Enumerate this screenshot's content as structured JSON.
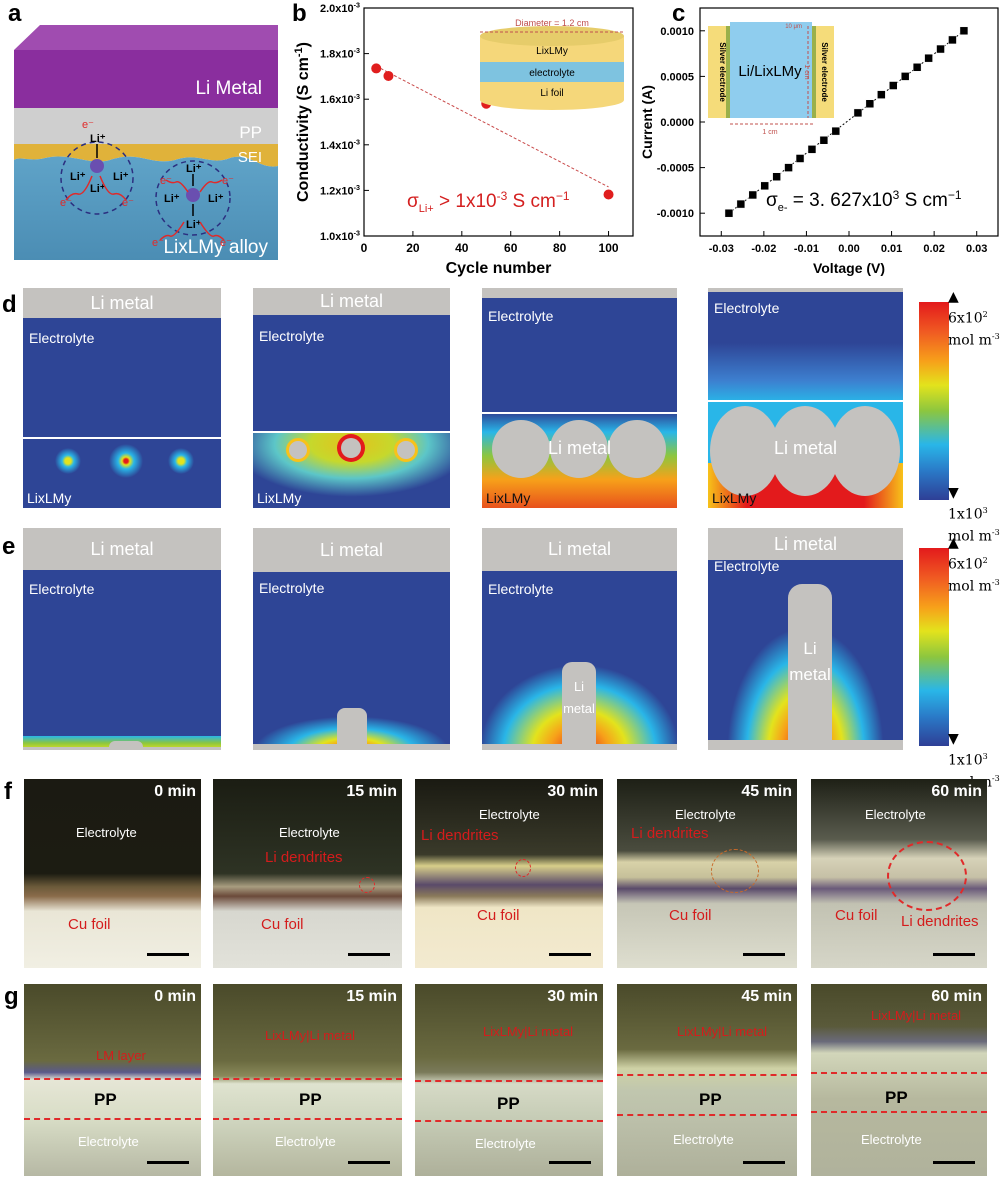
{
  "panel_labels": {
    "a": "a",
    "b": "b",
    "c": "c",
    "d": "d",
    "e": "e",
    "f": "f",
    "g": "g"
  },
  "panel_a": {
    "layers": [
      "Li Metal",
      "PP",
      "SEI",
      "LixLMy alloy"
    ],
    "ions": {
      "li": "Li",
      "li_sup": "+",
      "e": "e",
      "e_sup": "-"
    },
    "colors": {
      "li_metal": "#8a2e9e",
      "pp": "#c9c9c9",
      "sei": "#e0b23a",
      "alloy": "#5a9bc0"
    }
  },
  "chart_data": [
    {
      "type": "scatter",
      "panel": "b",
      "xlabel": "Cycle number",
      "ylabel": "Conductivity (S cm",
      "ylabel_sup": "-1",
      "ylabel_close": ")",
      "xlim": [
        0,
        110
      ],
      "ylim": [
        0.001,
        0.002
      ],
      "xticks": [
        0,
        20,
        40,
        60,
        80,
        100
      ],
      "yticks": [
        {
          "v": 0.001,
          "label": "1.0x10",
          "exp": "-3"
        },
        {
          "v": 0.0012,
          "label": "1.2x10",
          "exp": "-3"
        },
        {
          "v": 0.0014,
          "label": "1.4x10",
          "exp": "-3"
        },
        {
          "v": 0.0016,
          "label": "1.6x10",
          "exp": "-3"
        },
        {
          "v": 0.0018,
          "label": "1.8x10",
          "exp": "-3"
        },
        {
          "v": 0.002,
          "label": "2.0x10",
          "exp": "-3"
        }
      ],
      "x": [
        5,
        10,
        50,
        100
      ],
      "y": [
        0.001735,
        0.001702,
        0.00158,
        0.001182
      ],
      "fit_line": {
        "x": [
          5,
          100
        ],
        "y": [
          0.001745,
          0.001215
        ]
      },
      "marker_color": "#e01e1e",
      "annotation": {
        "sigma": "σ",
        "sub": "Li+",
        "text": " > 1x10",
        "exp": "-3",
        "unit": " S cm",
        "unit_exp": "−1"
      },
      "inset": {
        "diameter": "Diameter = 1.2 cm",
        "layers": [
          "LixLMy",
          "electrolyte",
          "Li foil"
        ]
      }
    },
    {
      "type": "scatter",
      "panel": "c",
      "xlabel": "Voltage (V)",
      "ylabel": "Current (A)",
      "xlim": [
        -0.035,
        0.035
      ],
      "ylim": [
        -0.00125,
        0.00125
      ],
      "xticks": [
        "-0.03",
        "-0.02",
        "-0.01",
        "0.00",
        "0.01",
        "0.02",
        "0.03"
      ],
      "xtick_values": [
        -0.03,
        -0.02,
        -0.01,
        0.0,
        0.01,
        0.02,
        0.03
      ],
      "yticks": [
        "-0.0010",
        "-0.0005",
        "0.0000",
        "0.0005",
        "0.0010"
      ],
      "ytick_values": [
        -0.001,
        -0.0005,
        0,
        0.0005,
        0.001
      ],
      "x": [
        -0.0282,
        -0.0254,
        -0.0226,
        -0.0198,
        -0.017,
        -0.0142,
        -0.0115,
        -0.0087,
        -0.0059,
        -0.0031,
        0.0021,
        0.0049,
        0.0076,
        0.0104,
        0.0132,
        0.016,
        0.0187,
        0.0215,
        0.0243,
        0.027
      ],
      "y": [
        -0.001,
        -0.0009,
        -0.0008,
        -0.0007,
        -0.0006,
        -0.0005,
        -0.0004,
        -0.0003,
        -0.0002,
        -0.0001,
        0.0001,
        0.0002,
        0.0003,
        0.0004,
        0.0005,
        0.0006,
        0.0007,
        0.0008,
        0.0009,
        0.001
      ],
      "annotation": {
        "sigma": "σ",
        "sub": "e-",
        "text": " = 3. 627x10",
        "exp": "3",
        "unit": " S cm",
        "unit_exp": "−1"
      },
      "inset": {
        "electrode_left": "Silver electrode",
        "electrode_right": "Silver electrode",
        "material": "Li/LixLMy",
        "width": "1 cm",
        "height": "1 cm",
        "thickness": "10 μm"
      }
    }
  ],
  "panel_d": {
    "frames": [
      {
        "top": "Li metal",
        "electrolyte": "Electrolyte",
        "alloy": "LixLMy",
        "center": ""
      },
      {
        "top": "Li metal",
        "electrolyte": "Electrolyte",
        "alloy": "LixLMy",
        "center": ""
      },
      {
        "top": "",
        "electrolyte": "Electrolyte",
        "alloy": "LixLMy",
        "center": "Li metal"
      },
      {
        "top": "",
        "electrolyte": "Electrolyte",
        "alloy": "LixLMy",
        "center": "Li metal"
      }
    ],
    "colorbar": {
      "max": "6x10",
      "max_exp": "2",
      "min": "1x10",
      "min_exp": "3",
      "unit": "mol m",
      "unit_exp": "-3"
    }
  },
  "panel_e": {
    "frames": [
      {
        "top": "Li metal",
        "electrolyte": "Electrolyte",
        "center1": "",
        "center2": ""
      },
      {
        "top": "Li metal",
        "electrolyte": "Electrolyte",
        "center1": "",
        "center2": ""
      },
      {
        "top": "Li metal",
        "electrolyte": "Electrolyte",
        "center1": "Li",
        "center2": "metal"
      },
      {
        "top": "Li metal",
        "electrolyte": "Electrolyte",
        "center1": "Li",
        "center2": "metal"
      }
    ],
    "colorbar": {
      "max": "6x10",
      "max_exp": "2",
      "min": "1x10",
      "min_exp": "3",
      "unit": "mol m",
      "unit_exp": "-3"
    }
  },
  "panel_f": {
    "frames": [
      {
        "time": "0 min",
        "electrolyte": "Electrolyte",
        "cu": "Cu foil",
        "dendrite": ""
      },
      {
        "time": "15 min",
        "electrolyte": "Electrolyte",
        "cu": "Cu foil",
        "dendrite": "Li dendrites"
      },
      {
        "time": "30 min",
        "electrolyte": "Electrolyte",
        "cu": "Cu foil",
        "dendrite": "Li dendrites"
      },
      {
        "time": "45 min",
        "electrolyte": "Electrolyte",
        "cu": "Cu foil",
        "dendrite": "Li dendrites"
      },
      {
        "time": "60 min",
        "electrolyte": "Electrolyte",
        "cu": "Cu foil",
        "dendrite": "Li dendrites"
      }
    ]
  },
  "panel_g": {
    "frames": [
      {
        "time": "0 min",
        "layer": "LM layer",
        "pp": "PP",
        "electrolyte": "Electrolyte"
      },
      {
        "time": "15 min",
        "layer": "LixLMy|Li metal",
        "pp": "PP",
        "electrolyte": "Electrolyte"
      },
      {
        "time": "30 min",
        "layer": "LixLMy|Li metal",
        "pp": "PP",
        "electrolyte": "Electrolyte"
      },
      {
        "time": "45 min",
        "layer": "LixLMy|Li metal",
        "pp": "PP",
        "electrolyte": "Electrolyte"
      },
      {
        "time": "60 min",
        "layer": "LixLMy|Li metal",
        "pp": "PP",
        "electrolyte": "Electrolyte"
      }
    ]
  }
}
